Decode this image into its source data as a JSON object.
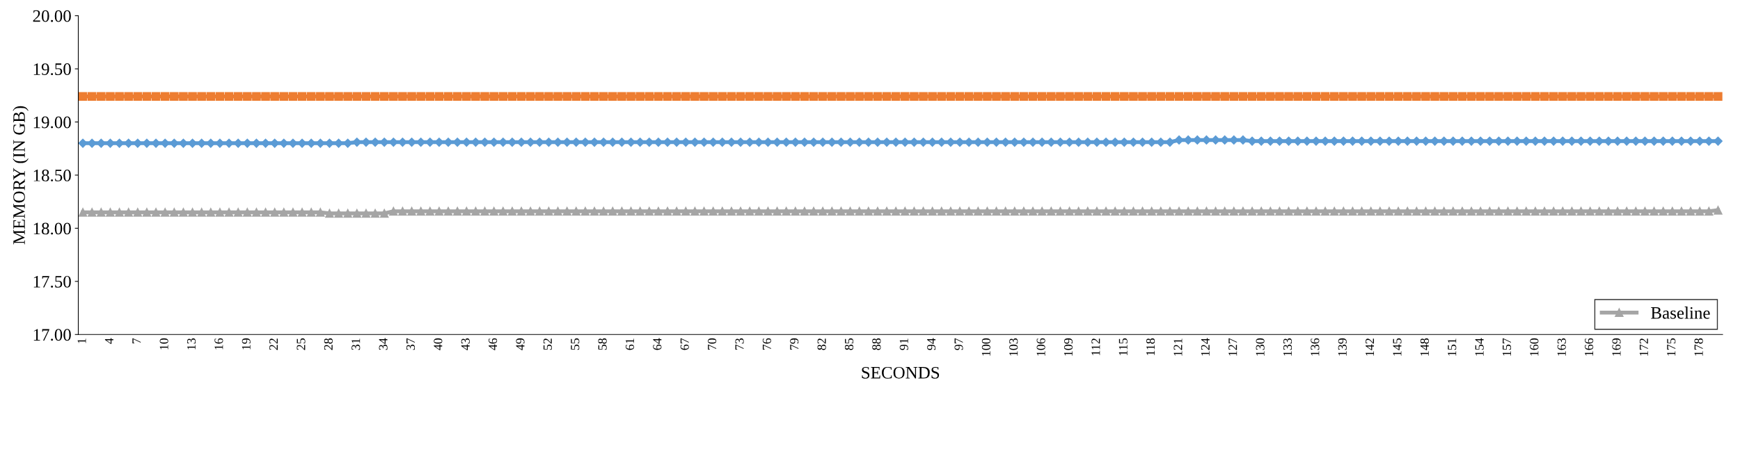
{
  "chart_data": {
    "type": "line",
    "xlabel": "SECONDS",
    "ylabel": "MEMORY (IN GB)",
    "categories": [
      "1",
      null,
      null,
      "4",
      null,
      null,
      "7",
      null,
      null,
      "10",
      null,
      null,
      "13",
      null,
      null,
      "16",
      null,
      null,
      "19",
      null,
      null,
      "22",
      null,
      null,
      "25",
      null,
      null,
      "28",
      null,
      null,
      "31",
      null,
      null,
      "34",
      null,
      null,
      "37",
      null,
      null,
      "40",
      null,
      null,
      "43",
      null,
      null,
      "46",
      null,
      null,
      "49",
      null,
      null,
      "52",
      null,
      null,
      "55",
      null,
      null,
      "58",
      null,
      null,
      "61",
      null,
      null,
      "64",
      null,
      null,
      "67",
      null,
      null,
      "70",
      null,
      null,
      "73",
      null,
      null,
      "76",
      null,
      null,
      "79",
      null,
      null,
      "82",
      null,
      null,
      "85",
      null,
      null,
      "88",
      null,
      null,
      "91",
      null,
      null,
      "94",
      null,
      null,
      "97",
      null,
      null,
      "100",
      null,
      null,
      "103",
      null,
      null,
      "106",
      null,
      null,
      "109",
      null,
      null,
      "112",
      null,
      null,
      "115",
      null,
      null,
      "118",
      null,
      null,
      "121",
      null,
      null,
      "124",
      null,
      null,
      "127",
      null,
      null,
      "130",
      null,
      null,
      "133",
      null,
      null,
      "136",
      null,
      null,
      "139",
      null,
      null,
      "142",
      null,
      null,
      "145",
      null,
      null,
      "148",
      null,
      null,
      "151",
      null,
      null,
      "154",
      null,
      null,
      "157",
      null,
      null,
      "160",
      null,
      null,
      "163",
      null,
      null,
      "166",
      null,
      null,
      "169",
      null,
      null,
      "172",
      null,
      null,
      "175",
      null,
      null,
      "178",
      null,
      null
    ],
    "series": [
      {
        "color": "#ed7d31",
        "marker": "square",
        "values": [
          19.24,
          19.24,
          19.24,
          19.24,
          19.24,
          19.24,
          19.24,
          19.24,
          19.24,
          19.24,
          19.24,
          19.24,
          19.24,
          19.24,
          19.24,
          19.24,
          19.24,
          19.24,
          19.24,
          19.24,
          19.24,
          19.24,
          19.24,
          19.24,
          19.24,
          19.24,
          19.24,
          19.24,
          19.24,
          19.24,
          19.24,
          19.24,
          19.24,
          19.24,
          19.24,
          19.24,
          19.24,
          19.24,
          19.24,
          19.24,
          19.24,
          19.24,
          19.24,
          19.24,
          19.24,
          19.24,
          19.24,
          19.24,
          19.24,
          19.24,
          19.24,
          19.24,
          19.24,
          19.24,
          19.24,
          19.24,
          19.24,
          19.24,
          19.24,
          19.24,
          19.24,
          19.24,
          19.24,
          19.24,
          19.24,
          19.24,
          19.24,
          19.24,
          19.24,
          19.24,
          19.24,
          19.24,
          19.24,
          19.24,
          19.24,
          19.24,
          19.24,
          19.24,
          19.24,
          19.24,
          19.24,
          19.24,
          19.24,
          19.24,
          19.24,
          19.24,
          19.24,
          19.24,
          19.24,
          19.24,
          19.24,
          19.24,
          19.24,
          19.24,
          19.24,
          19.24,
          19.24,
          19.24,
          19.24,
          19.24,
          19.24,
          19.24,
          19.24,
          19.24,
          19.24,
          19.24,
          19.24,
          19.24,
          19.24,
          19.24,
          19.24,
          19.24,
          19.24,
          19.24,
          19.24,
          19.24,
          19.24,
          19.24,
          19.24,
          19.24,
          19.24,
          19.24,
          19.24,
          19.24,
          19.24,
          19.24,
          19.24,
          19.24,
          19.24,
          19.24,
          19.24,
          19.24,
          19.24,
          19.24,
          19.24,
          19.24,
          19.24,
          19.24,
          19.24,
          19.24,
          19.24,
          19.24,
          19.24,
          19.24,
          19.24,
          19.24,
          19.24,
          19.24,
          19.24,
          19.24,
          19.24,
          19.24,
          19.24,
          19.24,
          19.24,
          19.24,
          19.24,
          19.24,
          19.24,
          19.24,
          19.24,
          19.24,
          19.24,
          19.24,
          19.24,
          19.24,
          19.24,
          19.24,
          19.24,
          19.24,
          19.24,
          19.24,
          19.24,
          19.24,
          19.24,
          19.24,
          19.24,
          19.24,
          19.24,
          19.24
        ]
      },
      {
        "color": "#5b9bd5",
        "marker": "diamond",
        "values": [
          18.8,
          18.8,
          18.8,
          18.8,
          18.8,
          18.8,
          18.8,
          18.8,
          18.8,
          18.8,
          18.8,
          18.8,
          18.8,
          18.8,
          18.8,
          18.8,
          18.8,
          18.8,
          18.8,
          18.8,
          18.8,
          18.8,
          18.8,
          18.8,
          18.8,
          18.8,
          18.8,
          18.8,
          18.8,
          18.8,
          18.81,
          18.81,
          18.81,
          18.81,
          18.81,
          18.81,
          18.81,
          18.81,
          18.81,
          18.81,
          18.81,
          18.81,
          18.81,
          18.81,
          18.81,
          18.81,
          18.81,
          18.81,
          18.81,
          18.81,
          18.81,
          18.81,
          18.81,
          18.81,
          18.81,
          18.81,
          18.81,
          18.81,
          18.81,
          18.81,
          18.81,
          18.81,
          18.81,
          18.81,
          18.81,
          18.81,
          18.81,
          18.81,
          18.81,
          18.81,
          18.81,
          18.81,
          18.81,
          18.81,
          18.81,
          18.81,
          18.81,
          18.81,
          18.81,
          18.81,
          18.81,
          18.81,
          18.81,
          18.81,
          18.81,
          18.81,
          18.81,
          18.81,
          18.81,
          18.81,
          18.81,
          18.81,
          18.81,
          18.81,
          18.81,
          18.81,
          18.81,
          18.81,
          18.81,
          18.81,
          18.81,
          18.81,
          18.81,
          18.81,
          18.81,
          18.81,
          18.81,
          18.81,
          18.81,
          18.81,
          18.81,
          18.81,
          18.81,
          18.81,
          18.81,
          18.81,
          18.81,
          18.81,
          18.81,
          18.81,
          18.83,
          18.83,
          18.83,
          18.83,
          18.83,
          18.83,
          18.83,
          18.83,
          18.82,
          18.82,
          18.82,
          18.82,
          18.82,
          18.82,
          18.82,
          18.82,
          18.82,
          18.82,
          18.82,
          18.82,
          18.82,
          18.82,
          18.82,
          18.82,
          18.82,
          18.82,
          18.82,
          18.82,
          18.82,
          18.82,
          18.82,
          18.82,
          18.82,
          18.82,
          18.82,
          18.82,
          18.82,
          18.82,
          18.82,
          18.82,
          18.82,
          18.82,
          18.82,
          18.82,
          18.82,
          18.82,
          18.82,
          18.82,
          18.82,
          18.82,
          18.82,
          18.82,
          18.82,
          18.82,
          18.82,
          18.82,
          18.82,
          18.82,
          18.82,
          18.82
        ]
      },
      {
        "name": "Baseline",
        "color": "#a5a5a5",
        "marker": "triangle",
        "values": [
          18.15,
          18.15,
          18.15,
          18.15,
          18.15,
          18.15,
          18.15,
          18.15,
          18.15,
          18.15,
          18.15,
          18.15,
          18.15,
          18.15,
          18.15,
          18.15,
          18.15,
          18.15,
          18.15,
          18.15,
          18.15,
          18.15,
          18.15,
          18.15,
          18.15,
          18.15,
          18.15,
          18.14,
          18.14,
          18.14,
          18.14,
          18.14,
          18.14,
          18.14,
          18.16,
          18.16,
          18.16,
          18.16,
          18.16,
          18.16,
          18.16,
          18.16,
          18.16,
          18.16,
          18.16,
          18.16,
          18.16,
          18.16,
          18.16,
          18.16,
          18.16,
          18.16,
          18.16,
          18.16,
          18.16,
          18.16,
          18.16,
          18.16,
          18.16,
          18.16,
          18.16,
          18.16,
          18.16,
          18.16,
          18.16,
          18.16,
          18.16,
          18.16,
          18.16,
          18.16,
          18.16,
          18.16,
          18.16,
          18.16,
          18.16,
          18.16,
          18.16,
          18.16,
          18.16,
          18.16,
          18.16,
          18.16,
          18.16,
          18.16,
          18.16,
          18.16,
          18.16,
          18.16,
          18.16,
          18.16,
          18.16,
          18.16,
          18.16,
          18.16,
          18.16,
          18.16,
          18.16,
          18.16,
          18.16,
          18.16,
          18.16,
          18.16,
          18.16,
          18.16,
          18.16,
          18.16,
          18.16,
          18.16,
          18.16,
          18.16,
          18.16,
          18.16,
          18.16,
          18.16,
          18.16,
          18.16,
          18.16,
          18.16,
          18.16,
          18.16,
          18.16,
          18.16,
          18.16,
          18.16,
          18.16,
          18.16,
          18.16,
          18.16,
          18.16,
          18.16,
          18.16,
          18.16,
          18.16,
          18.16,
          18.16,
          18.16,
          18.16,
          18.16,
          18.16,
          18.16,
          18.16,
          18.16,
          18.16,
          18.16,
          18.16,
          18.16,
          18.16,
          18.16,
          18.16,
          18.16,
          18.16,
          18.16,
          18.16,
          18.16,
          18.16,
          18.16,
          18.16,
          18.16,
          18.16,
          18.16,
          18.16,
          18.16,
          18.16,
          18.16,
          18.16,
          18.16,
          18.16,
          18.16,
          18.16,
          18.16,
          18.16,
          18.16,
          18.16,
          18.16,
          18.16,
          18.16,
          18.16,
          18.16,
          18.16,
          18.17
        ]
      }
    ],
    "ylim": [
      17,
      20
    ],
    "yticks": [
      {
        "value": 17,
        "label": "17.00"
      },
      {
        "value": 17.5,
        "label": "17.50"
      },
      {
        "value": 18,
        "label": "18.00"
      },
      {
        "value": 18.5,
        "label": "18.50"
      },
      {
        "value": 19,
        "label": "19.00"
      },
      {
        "value": 19.5,
        "label": "19.50"
      },
      {
        "value": 20,
        "label": "20.00"
      }
    ],
    "grid": false,
    "legend": "bottom right",
    "line_style": "solid"
  }
}
